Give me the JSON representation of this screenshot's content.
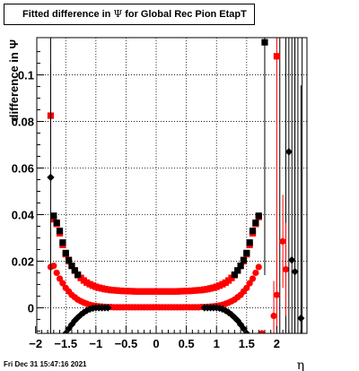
{
  "title": {
    "prefix": "Fitted difference in",
    "symbol": "Ψ",
    "suffix": "for Global Rec Pion EtapT"
  },
  "footer": {
    "timestamp": "Fri Dec 31 15:47:16 2021"
  },
  "chart_data": {
    "type": "scatter",
    "xlabel": "η",
    "ylabel": "difference in  Ψ",
    "xlim": [
      -1.98,
      2.5
    ],
    "ylim": [
      -0.011,
      0.116
    ],
    "xticks": [
      {
        "v": -2,
        "label": "−2"
      },
      {
        "v": -1.5,
        "label": "−1.5"
      },
      {
        "v": -1,
        "label": "−1"
      },
      {
        "v": -0.5,
        "label": "−0.5"
      },
      {
        "v": 0,
        "label": "0"
      },
      {
        "v": 0.5,
        "label": "0.5"
      },
      {
        "v": 1,
        "label": "1"
      },
      {
        "v": 1.5,
        "label": "1.5"
      },
      {
        "v": 2,
        "label": "2"
      }
    ],
    "yticks": [
      {
        "v": 0,
        "label": "0"
      },
      {
        "v": 0.02,
        "label": "0.02"
      },
      {
        "v": 0.04,
        "label": "0.04"
      },
      {
        "v": 0.06,
        "label": "0.06"
      },
      {
        "v": 0.08,
        "label": "0.08"
      },
      {
        "v": 0.1,
        "label": "0.1"
      }
    ],
    "grid": true,
    "series": [
      {
        "marker": "square",
        "color": "#ff0000",
        "points": [
          {
            "x": -1.75,
            "y": 0.0825,
            "err": 0.022
          },
          {
            "x": -1.7,
            "y": 0.038,
            "err": 0.0
          },
          {
            "x": -1.65,
            "y": 0.036
          },
          {
            "x": -1.6,
            "y": 0.032
          },
          {
            "x": -1.55,
            "y": 0.027
          },
          {
            "x": -1.5,
            "y": 0.023
          },
          {
            "x": -1.45,
            "y": 0.02
          },
          {
            "x": -1.4,
            "y": 0.018
          },
          {
            "x": -1.35,
            "y": 0.016
          },
          {
            "x": -1.3,
            "y": 0.014
          },
          {
            "x": -1.25,
            "y": 0.0128
          },
          {
            "x": -1.2,
            "y": 0.0117
          },
          {
            "x": -1.15,
            "y": 0.0108
          },
          {
            "x": -1.1,
            "y": 0.0101
          },
          {
            "x": -1.05,
            "y": 0.0095
          },
          {
            "x": -1.0,
            "y": 0.009
          },
          {
            "x": -0.95,
            "y": 0.0086
          },
          {
            "x": -0.9,
            "y": 0.0083
          },
          {
            "x": -0.85,
            "y": 0.008
          },
          {
            "x": -0.8,
            "y": 0.0078
          },
          {
            "x": -0.75,
            "y": 0.0076
          },
          {
            "x": -0.7,
            "y": 0.0075
          },
          {
            "x": -0.65,
            "y": 0.0074
          },
          {
            "x": -0.6,
            "y": 0.0073
          },
          {
            "x": -0.55,
            "y": 0.0072
          },
          {
            "x": -0.5,
            "y": 0.0072
          },
          {
            "x": -0.45,
            "y": 0.0071
          },
          {
            "x": -0.4,
            "y": 0.0071
          },
          {
            "x": -0.35,
            "y": 0.007
          },
          {
            "x": -0.3,
            "y": 0.007
          },
          {
            "x": -0.25,
            "y": 0.007
          },
          {
            "x": -0.2,
            "y": 0.007
          },
          {
            "x": -0.15,
            "y": 0.007
          },
          {
            "x": -0.1,
            "y": 0.007
          },
          {
            "x": -0.05,
            "y": 0.007
          },
          {
            "x": 0.0,
            "y": 0.007
          },
          {
            "x": 0.05,
            "y": 0.007
          },
          {
            "x": 0.1,
            "y": 0.007
          },
          {
            "x": 0.15,
            "y": 0.007
          },
          {
            "x": 0.2,
            "y": 0.007
          },
          {
            "x": 0.25,
            "y": 0.007
          },
          {
            "x": 0.3,
            "y": 0.007
          },
          {
            "x": 0.35,
            "y": 0.007
          },
          {
            "x": 0.4,
            "y": 0.0071
          },
          {
            "x": 0.45,
            "y": 0.0071
          },
          {
            "x": 0.5,
            "y": 0.0072
          },
          {
            "x": 0.55,
            "y": 0.0072
          },
          {
            "x": 0.6,
            "y": 0.0073
          },
          {
            "x": 0.65,
            "y": 0.0074
          },
          {
            "x": 0.7,
            "y": 0.0075
          },
          {
            "x": 0.75,
            "y": 0.0076
          },
          {
            "x": 0.8,
            "y": 0.0078
          },
          {
            "x": 0.85,
            "y": 0.008
          },
          {
            "x": 0.9,
            "y": 0.0083
          },
          {
            "x": 0.95,
            "y": 0.0086
          },
          {
            "x": 1.0,
            "y": 0.009
          },
          {
            "x": 1.05,
            "y": 0.0095
          },
          {
            "x": 1.1,
            "y": 0.0101
          },
          {
            "x": 1.15,
            "y": 0.0108
          },
          {
            "x": 1.2,
            "y": 0.0117
          },
          {
            "x": 1.25,
            "y": 0.0128
          },
          {
            "x": 1.3,
            "y": 0.014
          },
          {
            "x": 1.35,
            "y": 0.016
          },
          {
            "x": 1.4,
            "y": 0.018
          },
          {
            "x": 1.45,
            "y": 0.02
          },
          {
            "x": 1.5,
            "y": 0.023
          },
          {
            "x": 1.55,
            "y": 0.027
          },
          {
            "x": 1.6,
            "y": 0.032
          },
          {
            "x": 1.65,
            "y": 0.036
          },
          {
            "x": 1.7,
            "y": 0.039
          },
          {
            "x": 2.0,
            "y": 0.108,
            "err": 0.1
          }
        ]
      },
      {
        "marker": "circle",
        "color": "#ff0000",
        "points": [
          {
            "x": -1.75,
            "y": 0.0175,
            "err": 0.015
          },
          {
            "x": -1.7,
            "y": 0.018
          },
          {
            "x": -1.65,
            "y": 0.015
          },
          {
            "x": -1.6,
            "y": 0.0125
          },
          {
            "x": -1.55,
            "y": 0.0105
          },
          {
            "x": -1.5,
            "y": 0.0085
          },
          {
            "x": -1.45,
            "y": 0.007
          },
          {
            "x": -1.4,
            "y": 0.0055
          },
          {
            "x": -1.35,
            "y": 0.0045
          },
          {
            "x": -1.3,
            "y": 0.0035
          },
          {
            "x": -1.25,
            "y": 0.0028
          },
          {
            "x": -1.2,
            "y": 0.0022
          },
          {
            "x": -1.15,
            "y": 0.0017
          },
          {
            "x": -1.1,
            "y": 0.0013
          },
          {
            "x": -1.05,
            "y": 0.001
          },
          {
            "x": -1.0,
            "y": 0.0008
          },
          {
            "x": -0.95,
            "y": 0.0006
          },
          {
            "x": -0.9,
            "y": 0.0005
          },
          {
            "x": -0.85,
            "y": 0.0004
          },
          {
            "x": -0.8,
            "y": 0.0003
          },
          {
            "x": -0.75,
            "y": 0.0003
          },
          {
            "x": -0.7,
            "y": 0.0002
          },
          {
            "x": -0.65,
            "y": 0.0002
          },
          {
            "x": -0.6,
            "y": 0.0002
          },
          {
            "x": -0.55,
            "y": 0.0002
          },
          {
            "x": -0.5,
            "y": 0.0002
          },
          {
            "x": -0.45,
            "y": 0.0002
          },
          {
            "x": -0.4,
            "y": 0.0002
          },
          {
            "x": -0.35,
            "y": 0.0002
          },
          {
            "x": -0.3,
            "y": 0.0002
          },
          {
            "x": -0.25,
            "y": 0.0002
          },
          {
            "x": -0.2,
            "y": 0.0002
          },
          {
            "x": -0.15,
            "y": 0.0002
          },
          {
            "x": -0.1,
            "y": 0.0002
          },
          {
            "x": -0.05,
            "y": 0.0002
          },
          {
            "x": 0.0,
            "y": 0.0002
          },
          {
            "x": 0.05,
            "y": 0.0002
          },
          {
            "x": 0.1,
            "y": 0.0002
          },
          {
            "x": 0.15,
            "y": 0.0002
          },
          {
            "x": 0.2,
            "y": 0.0002
          },
          {
            "x": 0.25,
            "y": 0.0002
          },
          {
            "x": 0.3,
            "y": 0.0002
          },
          {
            "x": 0.35,
            "y": 0.0002
          },
          {
            "x": 0.4,
            "y": 0.0002
          },
          {
            "x": 0.45,
            "y": 0.0002
          },
          {
            "x": 0.5,
            "y": 0.0002
          },
          {
            "x": 0.55,
            "y": 0.0002
          },
          {
            "x": 0.6,
            "y": 0.0002
          },
          {
            "x": 0.65,
            "y": 0.0002
          },
          {
            "x": 0.7,
            "y": 0.0002
          },
          {
            "x": 0.75,
            "y": 0.0003
          },
          {
            "x": 0.8,
            "y": 0.0003
          },
          {
            "x": 0.85,
            "y": 0.0004
          },
          {
            "x": 0.9,
            "y": 0.0005
          },
          {
            "x": 0.95,
            "y": 0.0006
          },
          {
            "x": 1.0,
            "y": 0.0008
          },
          {
            "x": 1.05,
            "y": 0.001
          },
          {
            "x": 1.1,
            "y": 0.0013
          },
          {
            "x": 1.15,
            "y": 0.0017
          },
          {
            "x": 1.2,
            "y": 0.0022
          },
          {
            "x": 1.25,
            "y": 0.0028
          },
          {
            "x": 1.3,
            "y": 0.0035
          },
          {
            "x": 1.35,
            "y": 0.0045
          },
          {
            "x": 1.4,
            "y": 0.0055
          },
          {
            "x": 1.45,
            "y": 0.007
          },
          {
            "x": 1.5,
            "y": 0.0085
          },
          {
            "x": 1.55,
            "y": 0.0105
          },
          {
            "x": 1.6,
            "y": 0.0125
          },
          {
            "x": 1.65,
            "y": 0.015
          },
          {
            "x": 1.7,
            "y": 0.0175
          },
          {
            "x": 1.75,
            "y": -0.011,
            "err": 0.0
          },
          {
            "x": 1.95,
            "y": -0.0035,
            "err": 0.015
          },
          {
            "x": 2.0,
            "y": 0.0055,
            "err": 0.015
          },
          {
            "x": 2.1,
            "y": 0.0285,
            "err": 0.02
          },
          {
            "x": 2.15,
            "y": 0.0165,
            "err": 0.02
          }
        ]
      },
      {
        "marker": "square",
        "color": "#000000",
        "points": [
          {
            "x": -1.7,
            "y": 0.0395
          },
          {
            "x": -1.65,
            "y": 0.0365
          },
          {
            "x": -1.6,
            "y": 0.033
          },
          {
            "x": -1.55,
            "y": 0.028
          },
          {
            "x": -1.5,
            "y": 0.0235
          },
          {
            "x": -1.45,
            "y": 0.0205
          },
          {
            "x": -1.4,
            "y": 0.018
          },
          {
            "x": -1.35,
            "y": 0.016
          },
          {
            "x": -1.3,
            "y": 0.0142
          },
          {
            "x": 1.3,
            "y": 0.0142
          },
          {
            "x": 1.35,
            "y": 0.016
          },
          {
            "x": 1.4,
            "y": 0.018
          },
          {
            "x": 1.45,
            "y": 0.0205
          },
          {
            "x": 1.5,
            "y": 0.0235
          },
          {
            "x": 1.55,
            "y": 0.028
          },
          {
            "x": 1.6,
            "y": 0.033
          },
          {
            "x": 1.65,
            "y": 0.0365
          },
          {
            "x": 1.7,
            "y": 0.0395
          },
          {
            "x": 1.8,
            "y": 0.114,
            "err": 0.1
          }
        ]
      },
      {
        "marker": "diamond",
        "color": "#000000",
        "points": [
          {
            "x": -1.75,
            "y": 0.056,
            "err": 0.1
          },
          {
            "x": -1.5,
            "y": -0.011
          },
          {
            "x": -1.45,
            "y": -0.009
          },
          {
            "x": -1.4,
            "y": -0.0072
          },
          {
            "x": -1.35,
            "y": -0.0055
          },
          {
            "x": -1.3,
            "y": -0.0042
          },
          {
            "x": -1.25,
            "y": -0.003
          },
          {
            "x": -1.2,
            "y": -0.002
          },
          {
            "x": -1.15,
            "y": -0.0012
          },
          {
            "x": -1.1,
            "y": -0.0006
          },
          {
            "x": -1.05,
            "y": -0.0002
          },
          {
            "x": -1.0,
            "y": 0.0
          },
          {
            "x": -0.95,
            "y": 0.0
          },
          {
            "x": -0.9,
            "y": 0.0
          },
          {
            "x": -0.85,
            "y": 0.0
          },
          {
            "x": -0.8,
            "y": 0.0
          },
          {
            "x": 0.8,
            "y": 0.0
          },
          {
            "x": 0.85,
            "y": 0.0
          },
          {
            "x": 0.9,
            "y": 0.0
          },
          {
            "x": 0.95,
            "y": 0.0
          },
          {
            "x": 1.0,
            "y": 0.0
          },
          {
            "x": 1.05,
            "y": -0.0002
          },
          {
            "x": 1.1,
            "y": -0.0006
          },
          {
            "x": 1.15,
            "y": -0.0012
          },
          {
            "x": 1.2,
            "y": -0.002
          },
          {
            "x": 1.25,
            "y": -0.003
          },
          {
            "x": 1.3,
            "y": -0.0042
          },
          {
            "x": 1.35,
            "y": -0.0055
          },
          {
            "x": 1.4,
            "y": -0.0072
          },
          {
            "x": 1.45,
            "y": -0.009
          },
          {
            "x": 1.5,
            "y": -0.011
          },
          {
            "x": 2.2,
            "y": 0.067,
            "err": 0.1
          },
          {
            "x": 2.25,
            "y": 0.0205,
            "err": 0.1
          },
          {
            "x": 2.3,
            "y": 0.0155,
            "err": 0.1
          },
          {
            "x": 2.4,
            "y": -0.0045,
            "err": 0.1
          }
        ]
      }
    ],
    "extra_error_bars": {
      "color": "#000000",
      "xs": [
        2.05,
        2.15,
        2.3,
        2.35,
        2.42
      ]
    }
  }
}
